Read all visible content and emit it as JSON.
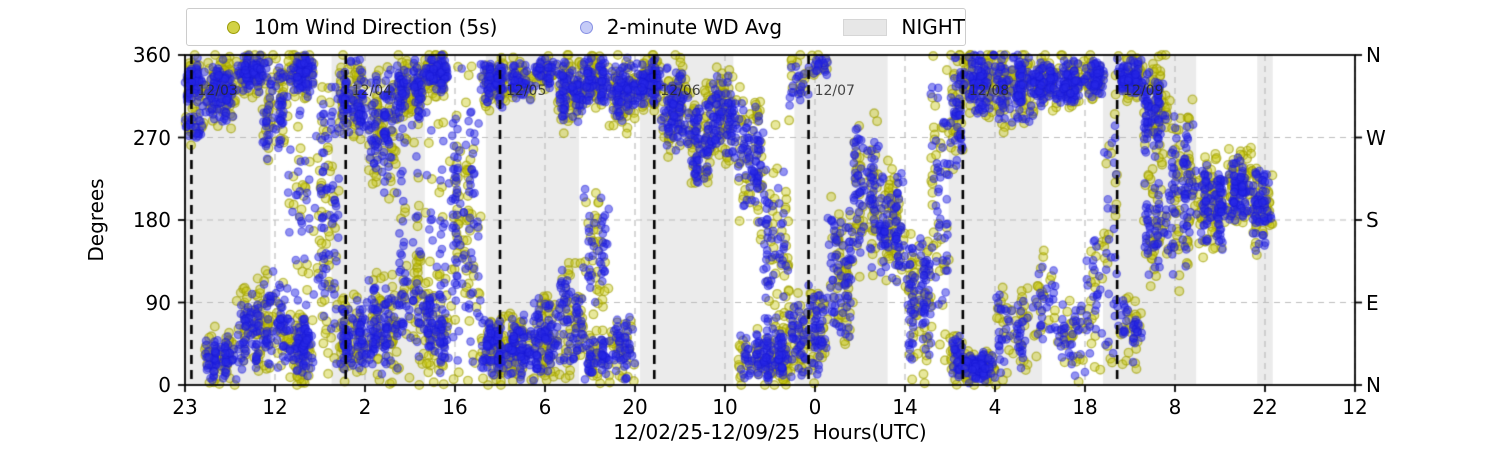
{
  "legend": {
    "items": [
      {
        "label": "10m Wind Direction (5s)",
        "marker": "dot",
        "color": "#c3c30a"
      },
      {
        "label": "2-minute WD Avg",
        "marker": "dot",
        "color": "#96a0f0"
      },
      {
        "label": "NIGHT",
        "marker": "patch",
        "color": "#e7e7e7"
      }
    ]
  },
  "axes": {
    "ylabel": "Degrees",
    "xlabel": "12/02/25-12/09/25  Hours(UTC)"
  },
  "chart_data": {
    "type": "scatter",
    "title": "",
    "xlabel": "12/02/25-12/09/25  Hours(UTC)",
    "ylabel": "Degrees",
    "ylim": [
      0,
      360
    ],
    "xlim_hours": [
      0,
      182
    ],
    "grid": "dashed",
    "yticks": [
      {
        "value": 0,
        "left": "0",
        "right": "N"
      },
      {
        "value": 90,
        "left": "90",
        "right": "E"
      },
      {
        "value": 180,
        "left": "180",
        "right": "S"
      },
      {
        "value": 270,
        "left": "270",
        "right": "W"
      },
      {
        "value": 360,
        "left": "360",
        "right": "N"
      }
    ],
    "xticks": [
      {
        "hour": 0,
        "label": "23"
      },
      {
        "hour": 14,
        "label": "12"
      },
      {
        "hour": 28,
        "label": "2"
      },
      {
        "hour": 42,
        "label": "16"
      },
      {
        "hour": 56,
        "label": "6"
      },
      {
        "hour": 70,
        "label": "20"
      },
      {
        "hour": 84,
        "label": "10"
      },
      {
        "hour": 98,
        "label": "0"
      },
      {
        "hour": 112,
        "label": "14"
      },
      {
        "hour": 126,
        "label": "4"
      },
      {
        "hour": 140,
        "label": "18"
      },
      {
        "hour": 154,
        "label": "8"
      },
      {
        "hour": 168,
        "label": "22"
      },
      {
        "hour": 182,
        "label": "12"
      }
    ],
    "midnight_lines": [
      {
        "hour": 1,
        "label": "12/03"
      },
      {
        "hour": 25,
        "label": "12/04"
      },
      {
        "hour": 49,
        "label": "12/05"
      },
      {
        "hour": 73,
        "label": "12/06"
      },
      {
        "hour": 97,
        "label": "12/07"
      },
      {
        "hour": 121,
        "label": "12/08"
      },
      {
        "hour": 145,
        "label": "12/09"
      }
    ],
    "night_spans_hours": [
      [
        0,
        13.3
      ],
      [
        22.8,
        37.3
      ],
      [
        46.8,
        61.3
      ],
      [
        70.8,
        85.3
      ],
      [
        94.8,
        109.3
      ],
      [
        118.8,
        133.3
      ],
      [
        142.8,
        157.3
      ],
      [
        166.8,
        169.2
      ]
    ],
    "series": [
      {
        "name": "10m Wind Direction (5s)",
        "color": "#bebe00",
        "alpha": 0.45
      },
      {
        "name": "2-minute WD Avg",
        "color": "#1e1ee6",
        "alpha": 0.45
      }
    ],
    "wind_bands": [
      [
        0,
        3,
        [
          [
            330,
            30,
            1
          ],
          [
            280,
            20,
            0.4
          ]
        ]
      ],
      [
        3,
        8,
        [
          [
            320,
            40,
            1
          ],
          [
            30,
            30,
            0.7
          ]
        ]
      ],
      [
        8,
        12,
        [
          [
            340,
            25,
            1
          ],
          [
            60,
            50,
            0.8
          ]
        ]
      ],
      [
        12,
        16,
        [
          [
            300,
            60,
            0.8
          ],
          [
            70,
            60,
            0.8
          ]
        ]
      ],
      [
        16,
        20,
        [
          [
            340,
            25,
            1
          ],
          [
            40,
            40,
            1
          ],
          [
            180,
            170,
            0.35
          ]
        ]
      ],
      [
        20,
        24,
        [
          [
            180,
            178,
            0.9
          ]
        ]
      ],
      [
        24,
        28,
        [
          [
            310,
            50,
            1
          ],
          [
            50,
            50,
            1
          ]
        ]
      ],
      [
        28,
        33,
        [
          [
            280,
            80,
            0.9
          ],
          [
            60,
            60,
            0.9
          ]
        ]
      ],
      [
        33,
        37,
        [
          [
            320,
            40,
            1
          ],
          [
            100,
            90,
            0.5
          ],
          [
            180,
            170,
            0.3
          ]
        ]
      ],
      [
        37,
        41,
        [
          [
            340,
            25,
            1
          ],
          [
            60,
            60,
            1
          ],
          [
            200,
            160,
            0.25
          ]
        ]
      ],
      [
        41,
        46,
        [
          [
            180,
            178,
            0.9
          ]
        ]
      ],
      [
        46,
        50,
        [
          [
            330,
            30,
            1
          ],
          [
            40,
            40,
            1
          ]
        ]
      ],
      [
        50,
        54,
        [
          [
            40,
            40,
            1
          ],
          [
            330,
            25,
            0.6
          ]
        ]
      ],
      [
        54,
        58,
        [
          [
            50,
            50,
            1
          ],
          [
            340,
            20,
            0.5
          ]
        ]
      ],
      [
        58,
        62,
        [
          [
            70,
            70,
            0.8
          ],
          [
            320,
            40,
            1
          ]
        ]
      ],
      [
        62,
        66,
        [
          [
            330,
            30,
            1
          ],
          [
            150,
            80,
            0.5
          ],
          [
            30,
            30,
            0.6
          ]
        ]
      ],
      [
        66,
        70,
        [
          [
            320,
            45,
            1
          ],
          [
            40,
            40,
            0.6
          ]
        ]
      ],
      [
        70,
        74,
        [
          [
            330,
            30,
            1.1
          ]
        ]
      ],
      [
        74,
        78,
        [
          [
            300,
            55,
            1
          ]
        ]
      ],
      [
        78,
        82,
        [
          [
            270,
            60,
            1
          ]
        ]
      ],
      [
        82,
        86,
        [
          [
            295,
            55,
            1
          ]
        ]
      ],
      [
        86,
        90,
        [
          [
            240,
            80,
            0.9
          ],
          [
            30,
            30,
            0.5
          ]
        ]
      ],
      [
        90,
        94,
        [
          [
            140,
            130,
            0.8
          ],
          [
            30,
            30,
            0.9
          ]
        ]
      ],
      [
        94,
        97,
        [
          [
            50,
            50,
            0.7
          ],
          [
            330,
            30,
            0.3
          ]
        ]
      ],
      [
        97,
        100,
        [
          [
            60,
            60,
            0.8
          ],
          [
            350,
            15,
            0.3
          ]
        ]
      ],
      [
        100,
        104,
        [
          [
            120,
            80,
            0.9
          ]
        ]
      ],
      [
        104,
        108,
        [
          [
            210,
            90,
            0.9
          ]
        ]
      ],
      [
        108,
        112,
        [
          [
            170,
            70,
            1
          ]
        ]
      ],
      [
        112,
        116,
        [
          [
            90,
            80,
            1
          ]
        ]
      ],
      [
        116,
        119,
        [
          [
            200,
            170,
            0.8
          ]
        ]
      ],
      [
        119,
        121,
        [
          [
            300,
            70,
            1
          ],
          [
            30,
            30,
            0.8
          ]
        ]
      ],
      [
        121,
        126,
        [
          [
            330,
            40,
            1
          ],
          [
            20,
            20,
            0.9
          ]
        ]
      ],
      [
        126,
        132,
        [
          [
            325,
            45,
            1
          ],
          [
            60,
            60,
            0.4
          ]
        ]
      ],
      [
        132,
        136,
        [
          [
            330,
            30,
            1
          ],
          [
            90,
            60,
            0.35
          ]
        ]
      ],
      [
        136,
        140,
        [
          [
            330,
            30,
            1
          ],
          [
            50,
            50,
            0.4
          ]
        ]
      ],
      [
        140,
        143,
        [
          [
            335,
            25,
            1
          ],
          [
            100,
            90,
            0.4
          ]
        ]
      ],
      [
        143,
        145,
        [
          [
            180,
            178,
            0.6
          ]
        ]
      ],
      [
        145,
        149,
        [
          [
            335,
            25,
            1.1
          ],
          [
            60,
            40,
            0.4
          ]
        ]
      ],
      [
        149,
        153,
        [
          [
            300,
            60,
            1
          ],
          [
            170,
            60,
            0.6
          ]
        ]
      ],
      [
        153,
        157,
        [
          [
            220,
            110,
            0.9
          ]
        ]
      ],
      [
        157,
        162,
        [
          [
            195,
            55,
            1
          ]
        ]
      ],
      [
        162,
        166,
        [
          [
            215,
            45,
            1
          ]
        ]
      ],
      [
        166,
        169.2,
        [
          [
            190,
            50,
            1
          ]
        ]
      ]
    ]
  }
}
